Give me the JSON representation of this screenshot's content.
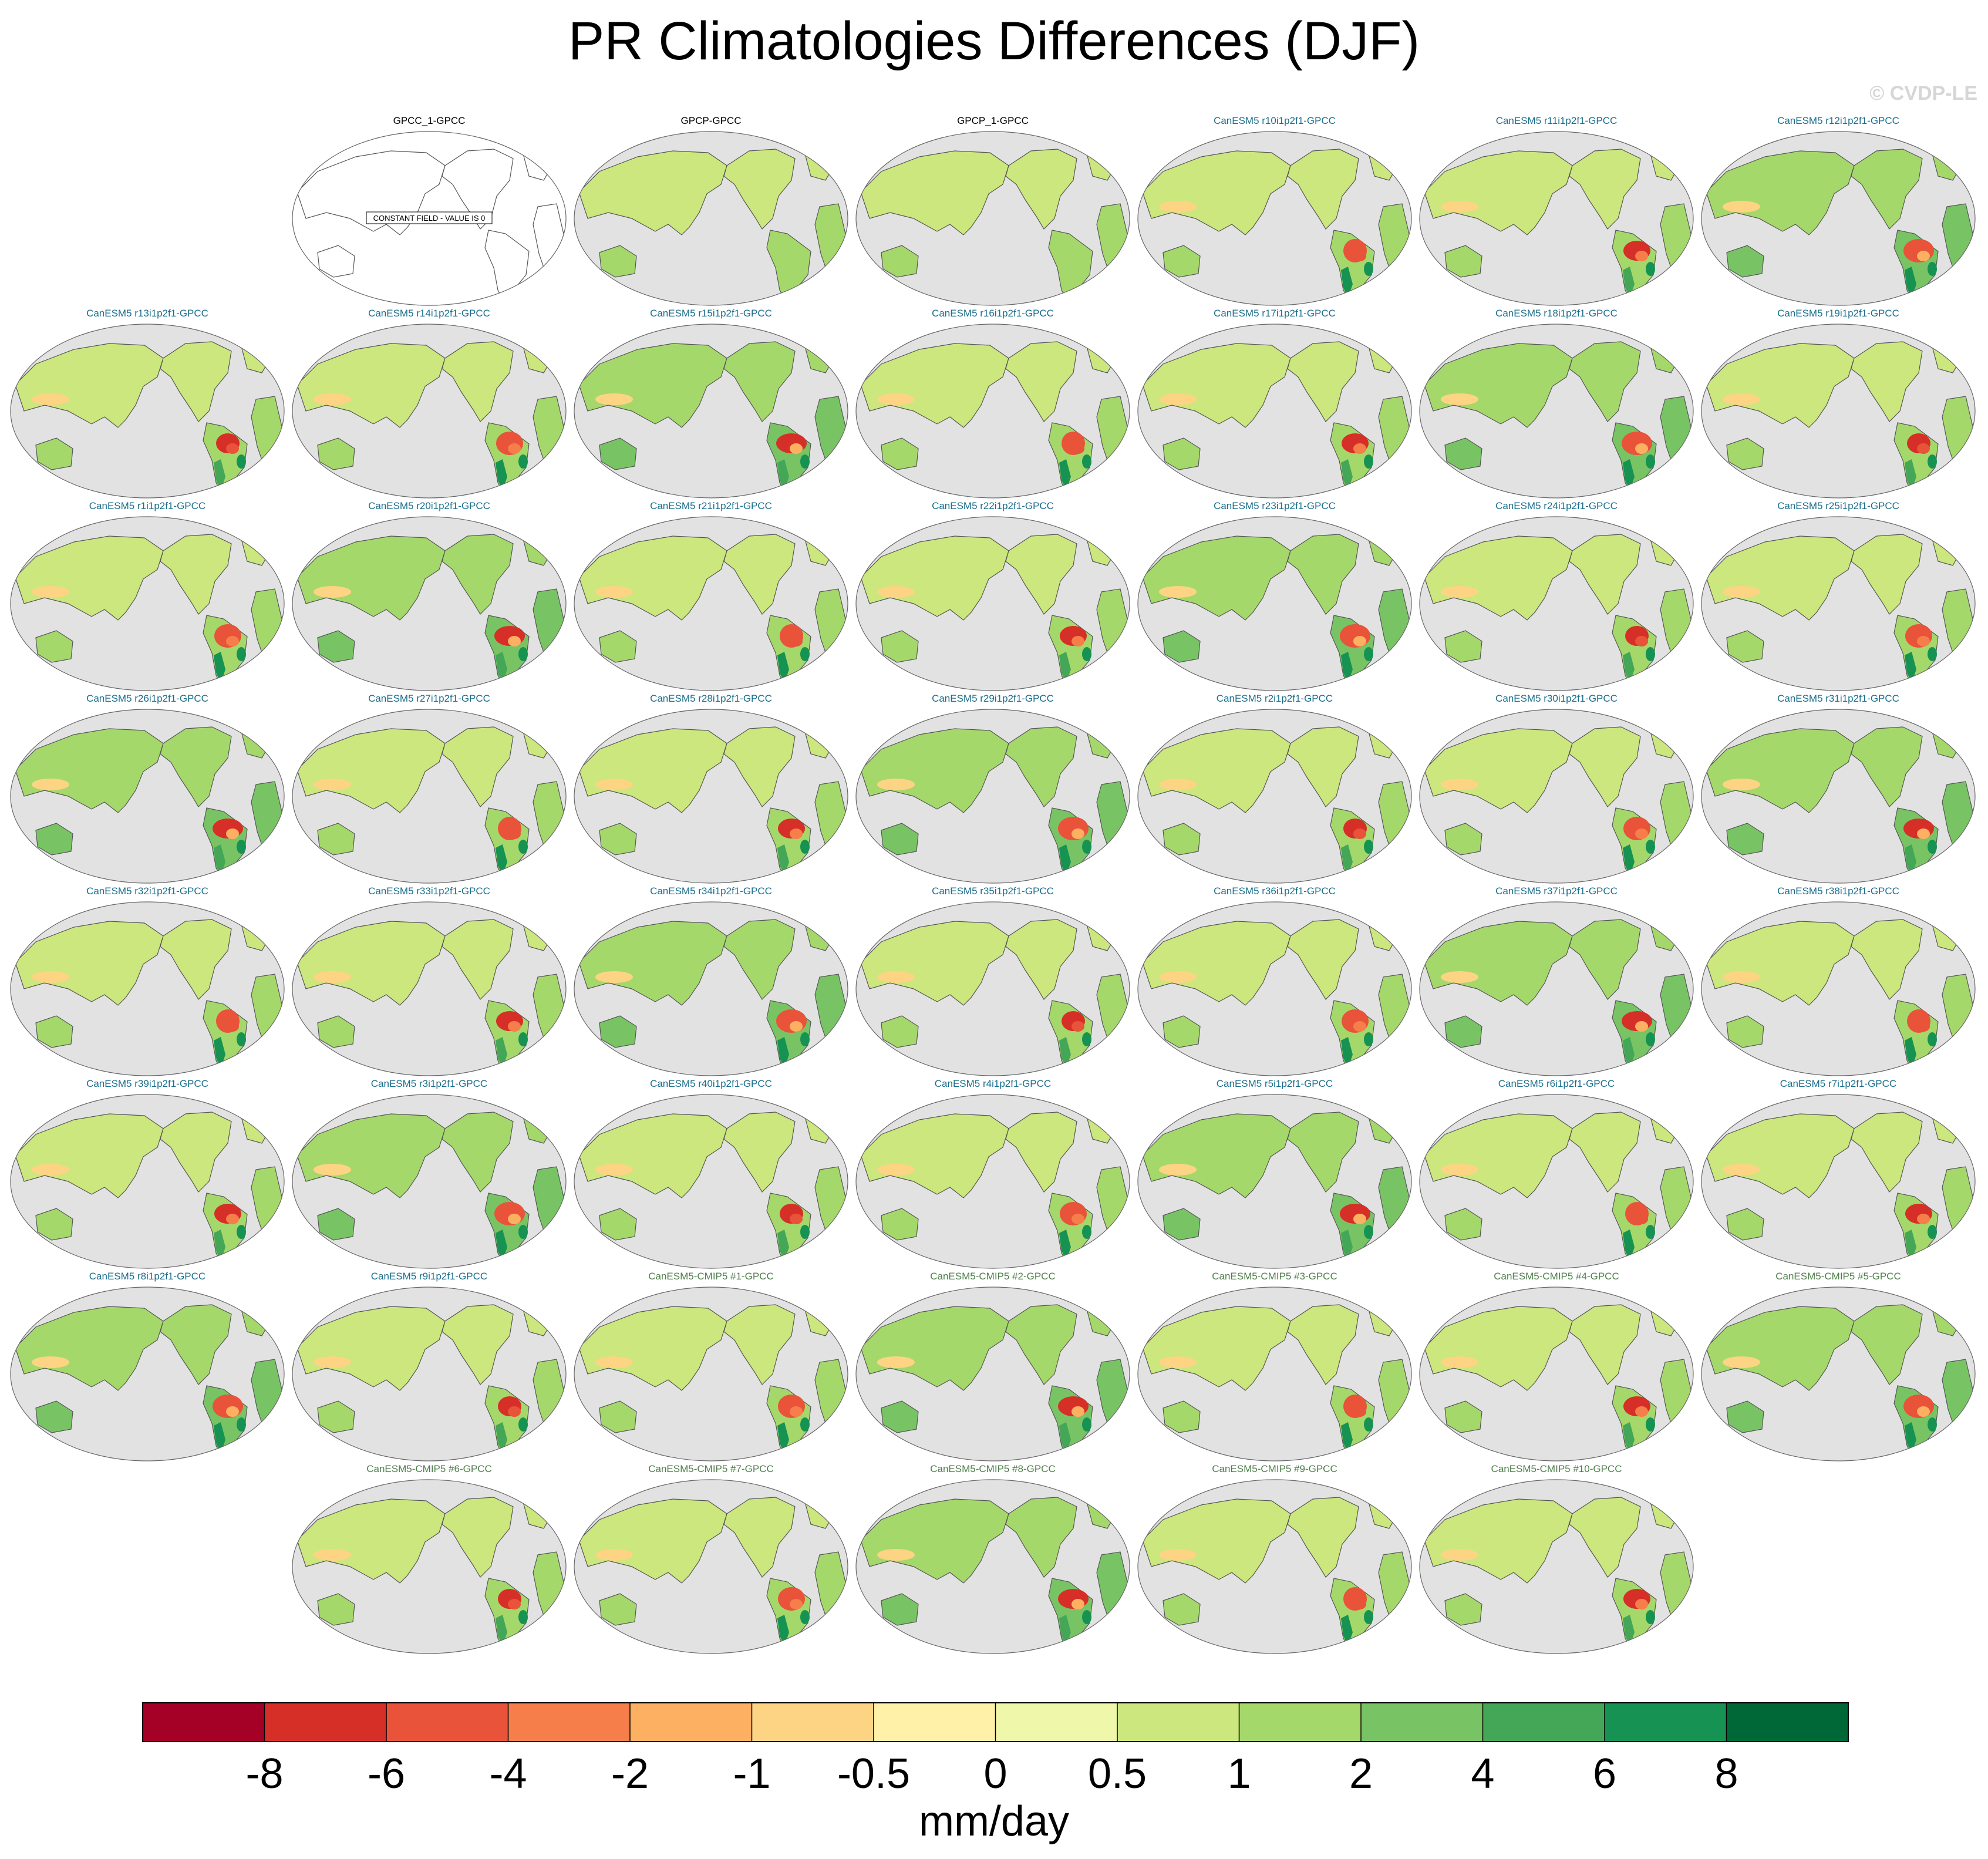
{
  "page": {
    "title": "PR Climatologies Differences (DJF)",
    "copyright": "© CVDP-LE"
  },
  "chart_data": {
    "type": "heatmap",
    "title": "PR Climatologies Differences (DJF)",
    "colorbar": {
      "label": "mm/day",
      "tick_labels": [
        "-8",
        "-6",
        "-4",
        "-2",
        "-1",
        "-0.5",
        "0",
        "0.5",
        "1",
        "2",
        "4",
        "6",
        "8"
      ],
      "colors": [
        "#a50026",
        "#d62f27",
        "#e85339",
        "#f57e4b",
        "#fdb061",
        "#fdd484",
        "#fff1a8",
        "#eff7aa",
        "#cbe77d",
        "#a5d86a",
        "#78c464",
        "#43a757",
        "#169352",
        "#006837"
      ]
    },
    "panels": [
      {
        "title": "GPCC_1-GPCC",
        "kind": "obs",
        "field": "constant",
        "note": "CONSTANT FIELD - VALUE IS 0"
      },
      {
        "title": "GPCP-GPCC",
        "kind": "obs",
        "field": "diff",
        "ampl": 0.3
      },
      {
        "title": "GPCP_1-GPCC",
        "kind": "obs",
        "field": "diff",
        "ampl": 0.3
      },
      {
        "title": "CanESM5 r10i1p2f1-GPCC",
        "kind": "member",
        "field": "diff",
        "ampl": 1
      },
      {
        "title": "CanESM5 r11i1p2f1-GPCC",
        "kind": "member",
        "field": "diff",
        "ampl": 1
      },
      {
        "title": "CanESM5 r12i1p2f1-GPCC",
        "kind": "member",
        "field": "diff",
        "ampl": 1
      },
      {
        "title": "CanESM5 r13i1p2f1-GPCC",
        "kind": "member",
        "field": "diff",
        "ampl": 1
      },
      {
        "title": "CanESM5 r14i1p2f1-GPCC",
        "kind": "member",
        "field": "diff",
        "ampl": 1
      },
      {
        "title": "CanESM5 r15i1p2f1-GPCC",
        "kind": "member",
        "field": "diff",
        "ampl": 1
      },
      {
        "title": "CanESM5 r16i1p2f1-GPCC",
        "kind": "member",
        "field": "diff",
        "ampl": 1
      },
      {
        "title": "CanESM5 r17i1p2f1-GPCC",
        "kind": "member",
        "field": "diff",
        "ampl": 1
      },
      {
        "title": "CanESM5 r18i1p2f1-GPCC",
        "kind": "member",
        "field": "diff",
        "ampl": 1
      },
      {
        "title": "CanESM5 r19i1p2f1-GPCC",
        "kind": "member",
        "field": "diff",
        "ampl": 1
      },
      {
        "title": "CanESM5 r1i1p2f1-GPCC",
        "kind": "member",
        "field": "diff",
        "ampl": 1
      },
      {
        "title": "CanESM5 r20i1p2f1-GPCC",
        "kind": "member",
        "field": "diff",
        "ampl": 1
      },
      {
        "title": "CanESM5 r21i1p2f1-GPCC",
        "kind": "member",
        "field": "diff",
        "ampl": 1
      },
      {
        "title": "CanESM5 r22i1p2f1-GPCC",
        "kind": "member",
        "field": "diff",
        "ampl": 1
      },
      {
        "title": "CanESM5 r23i1p2f1-GPCC",
        "kind": "member",
        "field": "diff",
        "ampl": 1
      },
      {
        "title": "CanESM5 r24i1p2f1-GPCC",
        "kind": "member",
        "field": "diff",
        "ampl": 1
      },
      {
        "title": "CanESM5 r25i1p2f1-GPCC",
        "kind": "member",
        "field": "diff",
        "ampl": 1
      },
      {
        "title": "CanESM5 r26i1p2f1-GPCC",
        "kind": "member",
        "field": "diff",
        "ampl": 1
      },
      {
        "title": "CanESM5 r27i1p2f1-GPCC",
        "kind": "member",
        "field": "diff",
        "ampl": 1
      },
      {
        "title": "CanESM5 r28i1p2f1-GPCC",
        "kind": "member",
        "field": "diff",
        "ampl": 1
      },
      {
        "title": "CanESM5 r29i1p2f1-GPCC",
        "kind": "member",
        "field": "diff",
        "ampl": 1
      },
      {
        "title": "CanESM5 r2i1p2f1-GPCC",
        "kind": "member",
        "field": "diff",
        "ampl": 1
      },
      {
        "title": "CanESM5 r30i1p2f1-GPCC",
        "kind": "member",
        "field": "diff",
        "ampl": 1
      },
      {
        "title": "CanESM5 r31i1p2f1-GPCC",
        "kind": "member",
        "field": "diff",
        "ampl": 1
      },
      {
        "title": "CanESM5 r32i1p2f1-GPCC",
        "kind": "member",
        "field": "diff",
        "ampl": 1
      },
      {
        "title": "CanESM5 r33i1p2f1-GPCC",
        "kind": "member",
        "field": "diff",
        "ampl": 1
      },
      {
        "title": "CanESM5 r34i1p2f1-GPCC",
        "kind": "member",
        "field": "diff",
        "ampl": 1
      },
      {
        "title": "CanESM5 r35i1p2f1-GPCC",
        "kind": "member",
        "field": "diff",
        "ampl": 1
      },
      {
        "title": "CanESM5 r36i1p2f1-GPCC",
        "kind": "member",
        "field": "diff",
        "ampl": 1
      },
      {
        "title": "CanESM5 r37i1p2f1-GPCC",
        "kind": "member",
        "field": "diff",
        "ampl": 1
      },
      {
        "title": "CanESM5 r38i1p2f1-GPCC",
        "kind": "member",
        "field": "diff",
        "ampl": 1
      },
      {
        "title": "CanESM5 r39i1p2f1-GPCC",
        "kind": "member",
        "field": "diff",
        "ampl": 1
      },
      {
        "title": "CanESM5 r3i1p2f1-GPCC",
        "kind": "member",
        "field": "diff",
        "ampl": 1
      },
      {
        "title": "CanESM5 r40i1p2f1-GPCC",
        "kind": "member",
        "field": "diff",
        "ampl": 1
      },
      {
        "title": "CanESM5 r4i1p2f1-GPCC",
        "kind": "member",
        "field": "diff",
        "ampl": 1
      },
      {
        "title": "CanESM5 r5i1p2f1-GPCC",
        "kind": "member",
        "field": "diff",
        "ampl": 1
      },
      {
        "title": "CanESM5 r6i1p2f1-GPCC",
        "kind": "member",
        "field": "diff",
        "ampl": 1
      },
      {
        "title": "CanESM5 r7i1p2f1-GPCC",
        "kind": "member",
        "field": "diff",
        "ampl": 1
      },
      {
        "title": "CanESM5 r8i1p2f1-GPCC",
        "kind": "member",
        "field": "diff",
        "ampl": 1
      },
      {
        "title": "CanESM5 r9i1p2f1-GPCC",
        "kind": "member",
        "field": "diff",
        "ampl": 1
      },
      {
        "title": "CanESM5-CMIP5 #1-GPCC",
        "kind": "cmip5",
        "field": "diff",
        "ampl": 1
      },
      {
        "title": "CanESM5-CMIP5 #2-GPCC",
        "kind": "cmip5",
        "field": "diff",
        "ampl": 1
      },
      {
        "title": "CanESM5-CMIP5 #3-GPCC",
        "kind": "cmip5",
        "field": "diff",
        "ampl": 1
      },
      {
        "title": "CanESM5-CMIP5 #4-GPCC",
        "kind": "cmip5",
        "field": "diff",
        "ampl": 1
      },
      {
        "title": "CanESM5-CMIP5 #5-GPCC",
        "kind": "cmip5",
        "field": "diff",
        "ampl": 1
      },
      {
        "title": "CanESM5-CMIP5 #6-GPCC",
        "kind": "cmip5",
        "field": "diff",
        "ampl": 1
      },
      {
        "title": "CanESM5-CMIP5 #7-GPCC",
        "kind": "cmip5",
        "field": "diff",
        "ampl": 1
      },
      {
        "title": "CanESM5-CMIP5 #8-GPCC",
        "kind": "cmip5",
        "field": "diff",
        "ampl": 1
      },
      {
        "title": "CanESM5-CMIP5 #9-GPCC",
        "kind": "cmip5",
        "field": "diff",
        "ampl": 1
      },
      {
        "title": "CanESM5-CMIP5 #10-GPCC",
        "kind": "cmip5",
        "field": "diff",
        "ampl": 1
      }
    ],
    "title_colors": {
      "obs": "#000000",
      "member": "#1a6e8c",
      "cmip5": "#4e7f4a"
    },
    "map_colors": {
      "ocean": "#e2e2e2",
      "coast": "#555555",
      "blank": "#ffffff"
    }
  }
}
